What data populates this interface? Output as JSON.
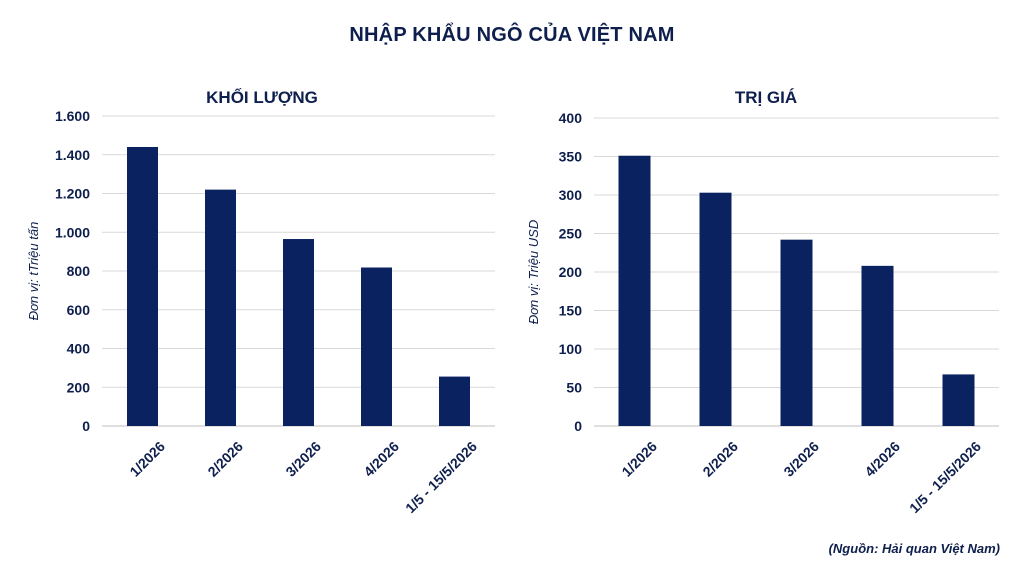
{
  "title": "NHẬP KHẨU NGÔ CỦA VIỆT NAM",
  "source": "(Nguồn: Hải quan Việt Nam)",
  "bar_color": "#0a2260",
  "chart_data": [
    {
      "type": "bar",
      "title": "KHỐI LƯỢNG",
      "ylabel": "Đơn vị: tTriệu tấn",
      "xlabel": "",
      "categories": [
        "1/2026",
        "2/2026",
        "3/2026",
        "4/2026",
        "1/5 - 15/5/2026"
      ],
      "values": [
        1440,
        1220,
        965,
        818,
        255
      ],
      "ylim": [
        0,
        1600
      ],
      "yticks": [
        0,
        200,
        400,
        600,
        800,
        1000,
        1200,
        1400,
        1600
      ],
      "ytick_labels": [
        "0",
        "200",
        "400",
        "600",
        "800",
        "1.000",
        "1.200",
        "1.400",
        "1.600"
      ],
      "grid": true,
      "legend": "none"
    },
    {
      "type": "bar",
      "title": "TRỊ GIÁ",
      "ylabel": "Đơn vị: Triệu USD",
      "xlabel": "",
      "categories": [
        "1/2026",
        "2/2026",
        "3/2026",
        "4/2026",
        "1/5 - 15/5/2026"
      ],
      "values": [
        351,
        303,
        242,
        208,
        67
      ],
      "ylim": [
        0,
        400
      ],
      "yticks": [
        0,
        50,
        100,
        150,
        200,
        250,
        300,
        350,
        400
      ],
      "ytick_labels": [
        "0",
        "50",
        "100",
        "150",
        "200",
        "250",
        "300",
        "350",
        "400"
      ],
      "grid": true,
      "legend": "none"
    }
  ]
}
